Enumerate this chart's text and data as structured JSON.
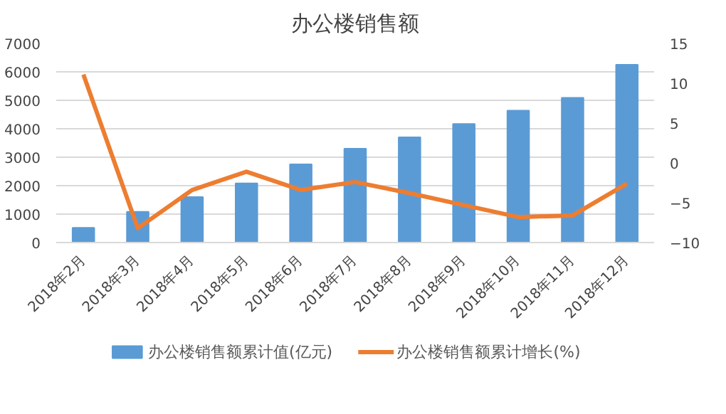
{
  "chart_data": {
    "type": "bar",
    "title": "办公楼销售额",
    "categories": [
      "2018年2月",
      "2018年3月",
      "2018年4月",
      "2018年5月",
      "2018年6月",
      "2018年7月",
      "2018年8月",
      "2018年9月",
      "2018年10月",
      "2018年11月",
      "2018年12月"
    ],
    "series": [
      {
        "name": "办公楼销售额累计值(亿元)",
        "color": "#5b9bd5",
        "values": [
          520,
          1080,
          1600,
          2080,
          2750,
          3300,
          3700,
          4170,
          4640,
          5090,
          6250
        ]
      },
      {
        "name": "办公楼销售额累计增长(%)",
        "color": "#ed7d31",
        "type": "line",
        "axis": "y2",
        "values": [
          11.1,
          -8.2,
          -3.4,
          -1.1,
          -3.4,
          -2.4,
          -3.8,
          -5.3,
          -6.8,
          -6.6,
          -2.6
        ]
      }
    ],
    "ylim": [
      0,
      7000
    ],
    "yticks": [
      0,
      1000,
      2000,
      3000,
      4000,
      5000,
      6000,
      7000
    ],
    "y2lim": [
      -10,
      15
    ],
    "y2ticks": [
      -10,
      -5,
      0,
      5,
      10,
      15
    ],
    "grid": "y",
    "legend": "bottom"
  }
}
